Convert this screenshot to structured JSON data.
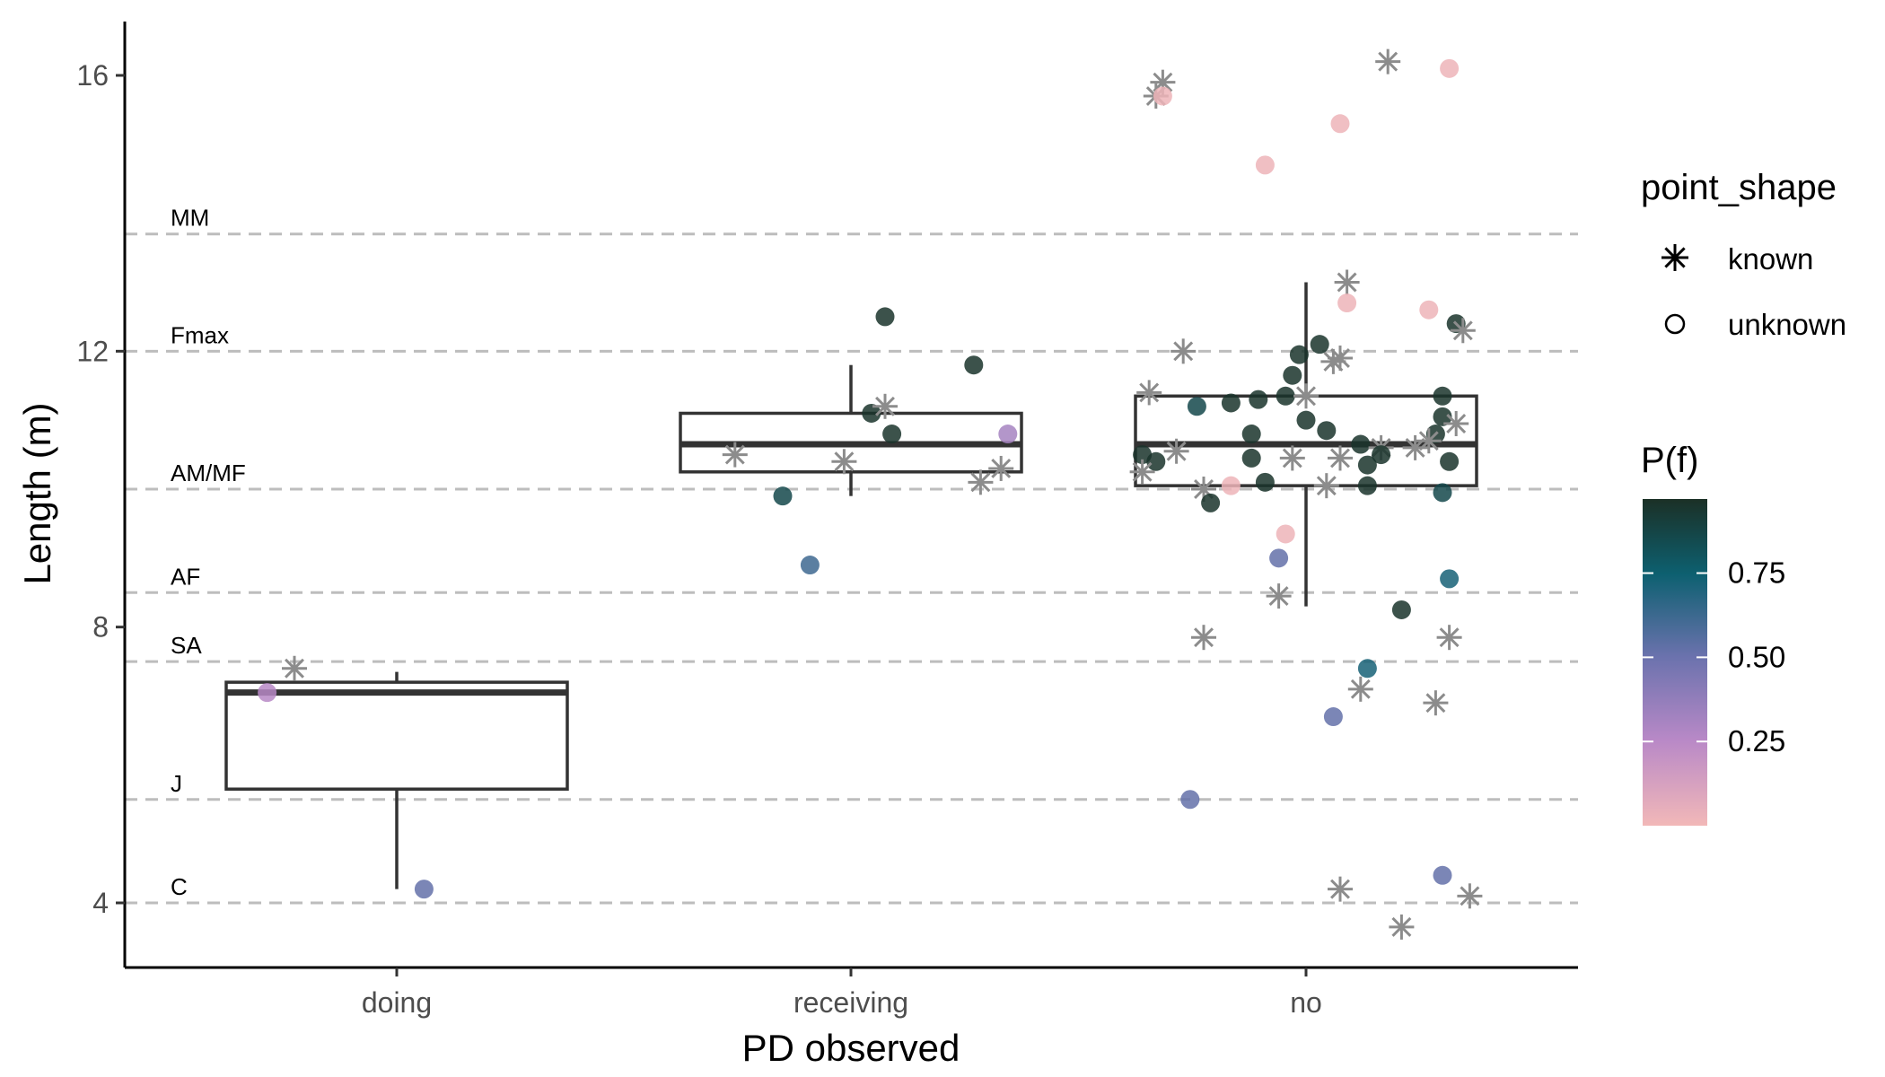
{
  "chart_data": {
    "type": "box",
    "xlabel": "PD observed",
    "ylabel": "Length (m)",
    "categories": [
      "doing",
      "receiving",
      "no"
    ],
    "ylim": [
      3,
      17
    ],
    "yticks": [
      4,
      8,
      12,
      16
    ],
    "grid": false,
    "legend_position": "right",
    "reference_lines": [
      {
        "label": "MM",
        "y": 13.7
      },
      {
        "label": "Fmax",
        "y": 12.0
      },
      {
        "label": "AM/MF",
        "y": 10.0
      },
      {
        "label": "AF",
        "y": 8.5
      },
      {
        "label": "SA",
        "y": 7.5
      },
      {
        "label": "J",
        "y": 5.5
      },
      {
        "label": "C",
        "y": 4.0
      }
    ],
    "boxes": [
      {
        "category": "doing",
        "q1": 5.65,
        "median": 7.05,
        "q3": 7.2,
        "whisker_low": 4.2,
        "whisker_high": 7.35
      },
      {
        "category": "receiving",
        "q1": 10.25,
        "median": 10.65,
        "q3": 11.1,
        "whisker_low": 9.9,
        "whisker_high": 11.8
      },
      {
        "category": "no",
        "q1": 10.05,
        "median": 10.65,
        "q3": 11.35,
        "whisker_low": 8.3,
        "whisker_high": 13.0
      }
    ],
    "points": [
      {
        "category": "doing",
        "jitter": -0.15,
        "y": 7.4,
        "shape": "known"
      },
      {
        "category": "doing",
        "jitter": -0.19,
        "y": 7.05,
        "shape": "unknown",
        "pf": 0.25
      },
      {
        "category": "doing",
        "jitter": 0.04,
        "y": 4.2,
        "shape": "unknown",
        "pf": 0.5
      },
      {
        "category": "receiving",
        "jitter": 0.05,
        "y": 12.5,
        "shape": "unknown",
        "pf": 0.95
      },
      {
        "category": "receiving",
        "jitter": 0.18,
        "y": 11.8,
        "shape": "unknown",
        "pf": 0.95
      },
      {
        "category": "receiving",
        "jitter": 0.03,
        "y": 11.1,
        "shape": "unknown",
        "pf": 0.95
      },
      {
        "category": "receiving",
        "jitter": 0.06,
        "y": 10.8,
        "shape": "unknown",
        "pf": 0.95
      },
      {
        "category": "receiving",
        "jitter": 0.23,
        "y": 10.8,
        "shape": "unknown",
        "pf": 0.3
      },
      {
        "category": "receiving",
        "jitter": -0.1,
        "y": 9.9,
        "shape": "unknown",
        "pf": 0.85
      },
      {
        "category": "receiving",
        "jitter": -0.06,
        "y": 8.9,
        "shape": "unknown",
        "pf": 0.6
      },
      {
        "category": "receiving",
        "jitter": 0.05,
        "y": 11.2,
        "shape": "known"
      },
      {
        "category": "receiving",
        "jitter": -0.17,
        "y": 10.5,
        "shape": "known"
      },
      {
        "category": "receiving",
        "jitter": -0.01,
        "y": 10.4,
        "shape": "known"
      },
      {
        "category": "receiving",
        "jitter": 0.22,
        "y": 10.3,
        "shape": "known"
      },
      {
        "category": "receiving",
        "jitter": 0.19,
        "y": 10.1,
        "shape": "known"
      },
      {
        "category": "no",
        "jitter": -0.22,
        "y": 15.7,
        "shape": "known"
      },
      {
        "category": "no",
        "jitter": -0.21,
        "y": 15.9,
        "shape": "known"
      },
      {
        "category": "no",
        "jitter": 0.12,
        "y": 16.2,
        "shape": "known"
      },
      {
        "category": "no",
        "jitter": -0.21,
        "y": 15.7,
        "shape": "unknown",
        "pf": 0.02
      },
      {
        "category": "no",
        "jitter": 0.21,
        "y": 16.1,
        "shape": "unknown",
        "pf": 0.02
      },
      {
        "category": "no",
        "jitter": 0.05,
        "y": 15.3,
        "shape": "unknown",
        "pf": 0.02
      },
      {
        "category": "no",
        "jitter": -0.06,
        "y": 14.7,
        "shape": "unknown",
        "pf": 0.02
      },
      {
        "category": "no",
        "jitter": 0.06,
        "y": 13.0,
        "shape": "known"
      },
      {
        "category": "no",
        "jitter": 0.06,
        "y": 12.7,
        "shape": "unknown",
        "pf": 0.02
      },
      {
        "category": "no",
        "jitter": 0.18,
        "y": 12.6,
        "shape": "unknown",
        "pf": 0.02
      },
      {
        "category": "no",
        "jitter": 0.22,
        "y": 12.4,
        "shape": "unknown",
        "pf": 0.95
      },
      {
        "category": "no",
        "jitter": 0.23,
        "y": 12.3,
        "shape": "known"
      },
      {
        "category": "no",
        "jitter": -0.18,
        "y": 12.0,
        "shape": "known"
      },
      {
        "category": "no",
        "jitter": 0.02,
        "y": 12.1,
        "shape": "unknown",
        "pf": 0.95
      },
      {
        "category": "no",
        "jitter": -0.01,
        "y": 11.95,
        "shape": "unknown",
        "pf": 0.95
      },
      {
        "category": "no",
        "jitter": 0.05,
        "y": 11.9,
        "shape": "known"
      },
      {
        "category": "no",
        "jitter": 0.04,
        "y": 11.85,
        "shape": "known"
      },
      {
        "category": "no",
        "jitter": -0.02,
        "y": 11.65,
        "shape": "unknown",
        "pf": 0.95
      },
      {
        "category": "no",
        "jitter": -0.23,
        "y": 11.4,
        "shape": "known"
      },
      {
        "category": "no",
        "jitter": -0.16,
        "y": 11.2,
        "shape": "unknown",
        "pf": 0.85
      },
      {
        "category": "no",
        "jitter": -0.11,
        "y": 11.25,
        "shape": "unknown",
        "pf": 0.95
      },
      {
        "category": "no",
        "jitter": -0.07,
        "y": 11.3,
        "shape": "unknown",
        "pf": 0.95
      },
      {
        "category": "no",
        "jitter": -0.03,
        "y": 11.35,
        "shape": "unknown",
        "pf": 0.95
      },
      {
        "category": "no",
        "jitter": 0.0,
        "y": 11.35,
        "shape": "known"
      },
      {
        "category": "no",
        "jitter": 0.2,
        "y": 11.35,
        "shape": "unknown",
        "pf": 0.95
      },
      {
        "category": "no",
        "jitter": 0.2,
        "y": 11.05,
        "shape": "unknown",
        "pf": 0.95
      },
      {
        "category": "no",
        "jitter": 0.22,
        "y": 10.95,
        "shape": "known"
      },
      {
        "category": "no",
        "jitter": 0.0,
        "y": 11.0,
        "shape": "unknown",
        "pf": 0.95
      },
      {
        "category": "no",
        "jitter": 0.03,
        "y": 10.85,
        "shape": "unknown",
        "pf": 0.95
      },
      {
        "category": "no",
        "jitter": -0.08,
        "y": 10.8,
        "shape": "unknown",
        "pf": 0.95
      },
      {
        "category": "no",
        "jitter": 0.19,
        "y": 10.8,
        "shape": "unknown",
        "pf": 0.95
      },
      {
        "category": "no",
        "jitter": 0.18,
        "y": 10.7,
        "shape": "known"
      },
      {
        "category": "no",
        "jitter": 0.08,
        "y": 10.65,
        "shape": "unknown",
        "pf": 0.95
      },
      {
        "category": "no",
        "jitter": 0.11,
        "y": 10.6,
        "shape": "known"
      },
      {
        "category": "no",
        "jitter": 0.16,
        "y": 10.6,
        "shape": "known"
      },
      {
        "category": "no",
        "jitter": 0.11,
        "y": 10.5,
        "shape": "unknown",
        "pf": 0.95
      },
      {
        "category": "no",
        "jitter": -0.19,
        "y": 10.55,
        "shape": "known"
      },
      {
        "category": "no",
        "jitter": -0.24,
        "y": 10.5,
        "shape": "unknown",
        "pf": 0.95
      },
      {
        "category": "no",
        "jitter": -0.22,
        "y": 10.4,
        "shape": "unknown",
        "pf": 0.95
      },
      {
        "category": "no",
        "jitter": -0.08,
        "y": 10.45,
        "shape": "unknown",
        "pf": 0.95
      },
      {
        "category": "no",
        "jitter": -0.02,
        "y": 10.45,
        "shape": "known"
      },
      {
        "category": "no",
        "jitter": 0.05,
        "y": 10.45,
        "shape": "known"
      },
      {
        "category": "no",
        "jitter": 0.09,
        "y": 10.35,
        "shape": "unknown",
        "pf": 0.95
      },
      {
        "category": "no",
        "jitter": 0.21,
        "y": 10.4,
        "shape": "unknown",
        "pf": 0.95
      },
      {
        "category": "no",
        "jitter": -0.24,
        "y": 10.25,
        "shape": "known"
      },
      {
        "category": "no",
        "jitter": -0.06,
        "y": 10.1,
        "shape": "unknown",
        "pf": 0.95
      },
      {
        "category": "no",
        "jitter": 0.03,
        "y": 10.05,
        "shape": "known"
      },
      {
        "category": "no",
        "jitter": 0.09,
        "y": 10.05,
        "shape": "unknown",
        "pf": 0.95
      },
      {
        "category": "no",
        "jitter": -0.11,
        "y": 10.05,
        "shape": "unknown",
        "pf": 0.02
      },
      {
        "category": "no",
        "jitter": -0.15,
        "y": 10.0,
        "shape": "known"
      },
      {
        "category": "no",
        "jitter": 0.2,
        "y": 9.95,
        "shape": "unknown",
        "pf": 0.85
      },
      {
        "category": "no",
        "jitter": -0.14,
        "y": 9.8,
        "shape": "unknown",
        "pf": 0.95
      },
      {
        "category": "no",
        "jitter": -0.03,
        "y": 9.35,
        "shape": "unknown",
        "pf": 0.02
      },
      {
        "category": "no",
        "jitter": -0.04,
        "y": 9.0,
        "shape": "unknown",
        "pf": 0.5
      },
      {
        "category": "no",
        "jitter": 0.21,
        "y": 8.7,
        "shape": "unknown",
        "pf": 0.7
      },
      {
        "category": "no",
        "jitter": -0.04,
        "y": 8.45,
        "shape": "known"
      },
      {
        "category": "no",
        "jitter": 0.14,
        "y": 8.25,
        "shape": "unknown",
        "pf": 0.95
      },
      {
        "category": "no",
        "jitter": -0.15,
        "y": 7.85,
        "shape": "known"
      },
      {
        "category": "no",
        "jitter": 0.21,
        "y": 7.85,
        "shape": "known"
      },
      {
        "category": "no",
        "jitter": 0.09,
        "y": 7.4,
        "shape": "unknown",
        "pf": 0.7
      },
      {
        "category": "no",
        "jitter": 0.08,
        "y": 7.1,
        "shape": "known"
      },
      {
        "category": "no",
        "jitter": 0.19,
        "y": 6.9,
        "shape": "known"
      },
      {
        "category": "no",
        "jitter": 0.04,
        "y": 6.7,
        "shape": "unknown",
        "pf": 0.5
      },
      {
        "category": "no",
        "jitter": -0.17,
        "y": 5.5,
        "shape": "unknown",
        "pf": 0.5
      },
      {
        "category": "no",
        "jitter": 0.2,
        "y": 4.4,
        "shape": "unknown",
        "pf": 0.5
      },
      {
        "category": "no",
        "jitter": 0.05,
        "y": 4.2,
        "shape": "known"
      },
      {
        "category": "no",
        "jitter": 0.24,
        "y": 4.1,
        "shape": "known"
      },
      {
        "category": "no",
        "jitter": 0.14,
        "y": 3.65,
        "shape": "known"
      }
    ],
    "legend_shape": {
      "title": "point_shape",
      "entries": [
        "known",
        "unknown"
      ]
    },
    "legend_color": {
      "title": "P(f)",
      "ticks": [
        "0.25",
        "0.50",
        "0.75"
      ],
      "tick_values": [
        0.25,
        0.5,
        0.75
      ],
      "range": [
        0.0,
        0.97
      ],
      "colors": [
        "#f2b8b8",
        "#b989c7",
        "#6a72ad",
        "#0d6070",
        "#1b3026"
      ]
    }
  }
}
